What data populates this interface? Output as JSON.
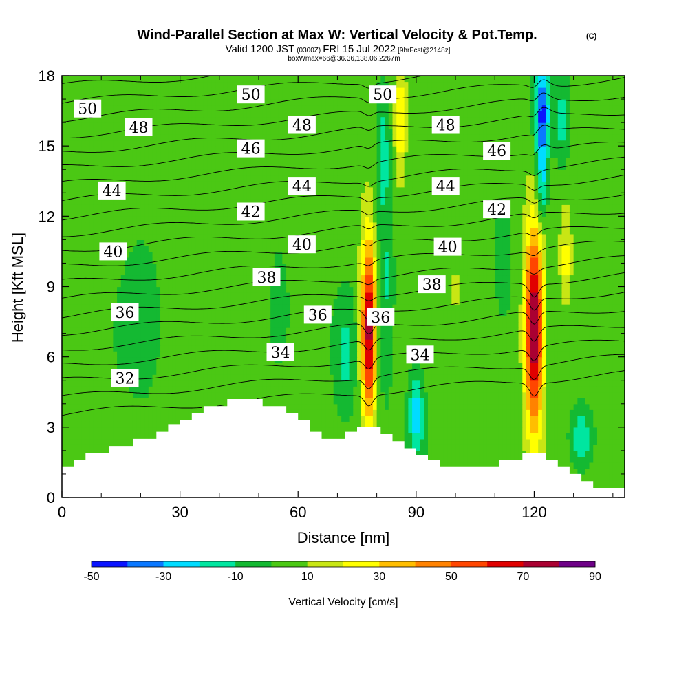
{
  "title": {
    "main": "Wind-Parallel Section at Max W: Vertical Velocity & Pot.Temp.",
    "mark": "(C)",
    "valid_a": "Valid 1200 JST",
    "valid_zone": "(0300Z)",
    "valid_b": "FRI 15 Jul 2022",
    "valid_fcst": "[9hrFcst@2148z]",
    "box": "boxWmax=66@36.36,138.06,2267m"
  },
  "chart_data": {
    "type": "heatmap",
    "xlabel": "Distance [nm]",
    "ylabel": "Height [Kft MSL]",
    "xlim": [
      0,
      143
    ],
    "ylim": [
      0,
      18
    ],
    "x_ticks": [
      0,
      30,
      60,
      90,
      120
    ],
    "y_ticks": [
      0,
      3,
      6,
      9,
      12,
      15,
      18
    ],
    "x_tick_labels": [
      "0",
      "30",
      "60",
      "90",
      "120"
    ],
    "y_tick_labels": [
      "0",
      "3",
      "6",
      "9",
      "12",
      "15",
      "18"
    ],
    "colorbar": {
      "title": "Vertical Velocity [cm/s]",
      "levels": [
        -50,
        -40,
        -30,
        -20,
        -10,
        0,
        10,
        20,
        30,
        40,
        50,
        60,
        70,
        80,
        90
      ],
      "colors": [
        "#0a14ff",
        "#0a78ff",
        "#00dcff",
        "#00e6a0",
        "#14b932",
        "#4bc814",
        "#c8e614",
        "#ffff00",
        "#ffbe00",
        "#ff8200",
        "#ff4600",
        "#e10000",
        "#aa0032",
        "#6e0087"
      ],
      "tick_values": [
        -50,
        -30,
        -10,
        10,
        30,
        50,
        70,
        90
      ],
      "tick_labels": [
        "-50",
        "-30",
        "-10",
        "10",
        "30",
        "50",
        "70",
        "90"
      ]
    },
    "terrain": {
      "x": [
        0,
        3,
        6,
        9,
        12,
        15,
        18,
        21,
        24,
        27,
        30,
        33,
        36,
        39,
        42,
        45,
        48,
        51,
        54,
        57,
        60,
        63,
        66,
        69,
        72,
        75,
        78,
        81,
        84,
        87,
        90,
        93,
        96,
        99,
        102,
        105,
        108,
        111,
        114,
        117,
        120,
        123,
        126,
        129,
        132,
        135,
        138,
        141,
        143
      ],
      "height_kft": [
        1.3,
        1.6,
        1.9,
        1.9,
        2.2,
        2.2,
        2.5,
        2.5,
        2.8,
        3.1,
        3.3,
        3.6,
        3.9,
        3.9,
        4.2,
        4.2,
        4.2,
        3.9,
        3.9,
        3.6,
        3.3,
        2.8,
        2.5,
        2.5,
        2.8,
        3.0,
        3.0,
        2.7,
        2.4,
        2.1,
        1.8,
        1.6,
        1.3,
        1.3,
        1.3,
        1.3,
        1.3,
        1.6,
        1.6,
        1.9,
        1.9,
        1.6,
        1.3,
        1.0,
        0.7,
        0.4,
        0.4,
        0.4,
        0.4
      ]
    },
    "w_features": [
      {
        "cx": 78,
        "cy": 7.2,
        "rx": 1.9,
        "ry": 3.8,
        "w": 75
      },
      {
        "cx": 120,
        "cy": 7.2,
        "rx": 2.3,
        "ry": 4.2,
        "w": 80
      },
      {
        "cx": 122,
        "cy": 16.2,
        "rx": 1.8,
        "ry": 2.4,
        "w": -50
      },
      {
        "cx": 122,
        "cy": 13.0,
        "rx": 1.4,
        "ry": 1.4,
        "w": -20
      },
      {
        "cx": 132,
        "cy": 2.5,
        "rx": 2.8,
        "ry": 1.2,
        "w": -25
      },
      {
        "cx": 90,
        "cy": 3.5,
        "rx": 2.0,
        "ry": 1.8,
        "w": -30
      },
      {
        "cx": 82,
        "cy": 9.5,
        "rx": 2.2,
        "ry": 5.0,
        "w": -15
      },
      {
        "cx": 81.5,
        "cy": 15.0,
        "rx": 1.8,
        "ry": 2.5,
        "w": -15
      },
      {
        "cx": 72,
        "cy": 6.0,
        "rx": 2.5,
        "ry": 2.5,
        "w": -15
      },
      {
        "cx": 86,
        "cy": 16.0,
        "rx": 1.5,
        "ry": 2.5,
        "w": 25
      },
      {
        "cx": 127,
        "cy": 16.0,
        "rx": 2.0,
        "ry": 2.0,
        "w": -20
      },
      {
        "cx": 128,
        "cy": 10.0,
        "rx": 1.5,
        "ry": 2.0,
        "w": 20
      },
      {
        "cx": 45,
        "cy": 13.0,
        "rx": 0.5,
        "ry": 1.2,
        "w": 20
      },
      {
        "cx": 100,
        "cy": 9.0,
        "rx": 0.5,
        "ry": 0.8,
        "w": 20
      },
      {
        "cx": 20,
        "cy": 8.0,
        "rx": 5.0,
        "ry": 4.0,
        "w": -8
      },
      {
        "cx": 55,
        "cy": 8.0,
        "rx": 3.0,
        "ry": 3.0,
        "w": -8
      },
      {
        "cx": 112,
        "cy": 10.0,
        "rx": 3.0,
        "ry": 3.0,
        "w": -8
      }
    ],
    "theta_contours": {
      "levels": [
        31,
        32,
        33,
        34,
        35,
        36,
        37,
        38,
        39,
        40,
        41,
        42,
        43,
        44,
        45,
        46,
        47,
        48,
        49,
        50,
        51
      ],
      "labels": [
        {
          "text": "50",
          "x": 6.5,
          "y": 16.6
        },
        {
          "text": "48",
          "x": 19.5,
          "y": 15.8
        },
        {
          "text": "44",
          "x": 12.7,
          "y": 13.1
        },
        {
          "text": "40",
          "x": 13.0,
          "y": 10.5
        },
        {
          "text": "36",
          "x": 16.0,
          "y": 7.9
        },
        {
          "text": "32",
          "x": 16.0,
          "y": 5.1
        },
        {
          "text": "50",
          "x": 48.0,
          "y": 17.2
        },
        {
          "text": "46",
          "x": 48.0,
          "y": 14.9
        },
        {
          "text": "42",
          "x": 48.0,
          "y": 12.2
        },
        {
          "text": "38",
          "x": 52.0,
          "y": 9.4
        },
        {
          "text": "34",
          "x": 55.5,
          "y": 6.2
        },
        {
          "text": "48",
          "x": 61.0,
          "y": 15.9
        },
        {
          "text": "44",
          "x": 61.0,
          "y": 13.3
        },
        {
          "text": "40",
          "x": 61.0,
          "y": 10.8
        },
        {
          "text": "36",
          "x": 65.0,
          "y": 7.8
        },
        {
          "text": "50",
          "x": 81.5,
          "y": 17.2
        },
        {
          "text": "36",
          "x": 81.0,
          "y": 7.7
        },
        {
          "text": "34",
          "x": 91.0,
          "y": 6.1
        },
        {
          "text": "38",
          "x": 94.0,
          "y": 9.1
        },
        {
          "text": "48",
          "x": 97.5,
          "y": 15.9
        },
        {
          "text": "44",
          "x": 97.5,
          "y": 13.3
        },
        {
          "text": "40",
          "x": 98.0,
          "y": 10.7
        },
        {
          "text": "46",
          "x": 110.5,
          "y": 14.8
        },
        {
          "text": "42",
          "x": 110.5,
          "y": 12.3
        }
      ]
    }
  }
}
